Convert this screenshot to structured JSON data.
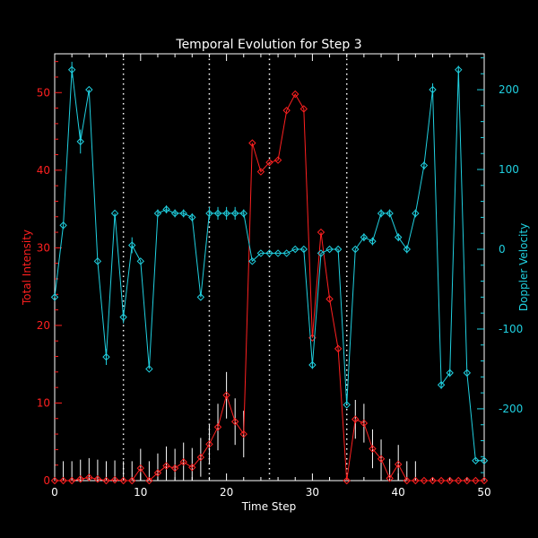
{
  "chart_data": {
    "type": "line",
    "title": "Temporal Evolution for Step 3",
    "xlabel": "Time Step",
    "ylabel_left": "Total Intensity",
    "ylabel_right": "Doppler Velocity",
    "xlim": [
      0,
      50
    ],
    "ylim_left": [
      0,
      55
    ],
    "ylim_right": [
      -290,
      245
    ],
    "x_ticks": [
      0,
      10,
      20,
      30,
      40,
      50
    ],
    "y_left_ticks": [
      0,
      10,
      20,
      30,
      40,
      50
    ],
    "y_right_ticks": [
      -200,
      -100,
      0,
      100,
      200
    ],
    "vertical_markers": [
      8,
      18,
      25,
      34
    ],
    "colors": {
      "background": "#000000",
      "axes": "#ffffff",
      "intensity": "#ff2020",
      "velocity": "#20d0e0",
      "markers": "#ffffff"
    },
    "series": [
      {
        "axis": "left",
        "x": [
          0,
          1,
          2,
          3,
          4,
          5,
          6,
          7,
          8,
          9,
          10,
          11,
          12,
          13,
          14,
          15,
          16,
          17,
          18,
          19,
          20,
          21,
          22,
          23,
          24,
          25,
          26,
          27,
          28,
          29,
          30,
          31,
          32,
          33,
          34,
          35,
          36,
          37,
          38,
          39,
          40,
          41,
          42,
          43,
          44,
          45,
          46,
          47,
          48,
          49,
          50
        ],
        "y": [
          0,
          0,
          0,
          0.2,
          0.4,
          0.2,
          0,
          0.1,
          0,
          0,
          1.6,
          0,
          1,
          1.9,
          1.6,
          2.4,
          1.7,
          3,
          4.7,
          6.9,
          11,
          7.6,
          6,
          43.5,
          39.8,
          41,
          41.3,
          47.7,
          49.8,
          47.9,
          18.4,
          32,
          23.4,
          17,
          0,
          7.9,
          7.4,
          4.1,
          2.8,
          0.3,
          2.1,
          0,
          0,
          0,
          0,
          0,
          0,
          0,
          0,
          0,
          0
        ],
        "err": [
          2.5,
          2.5,
          2.5,
          2.5,
          2.5,
          2.5,
          2.5,
          2.5,
          2.5,
          2.5,
          2.5,
          2.5,
          2.5,
          2.5,
          2.5,
          2.5,
          2.5,
          2.5,
          2.5,
          3,
          3,
          3,
          3,
          0,
          0,
          0,
          0,
          0,
          0,
          0,
          0,
          0,
          0,
          0,
          0,
          2.5,
          2.5,
          2.5,
          2.5,
          2.5,
          2.5,
          2.5,
          2.5,
          0,
          0,
          0,
          0,
          0,
          0,
          0,
          0
        ]
      },
      {
        "axis": "right",
        "x": [
          0,
          1,
          2,
          3,
          4,
          5,
          6,
          7,
          8,
          9,
          10,
          11,
          12,
          13,
          14,
          15,
          16,
          17,
          18,
          19,
          20,
          21,
          22,
          23,
          24,
          25,
          26,
          27,
          28,
          29,
          30,
          31,
          32,
          33,
          34,
          35,
          36,
          37,
          38,
          39,
          40,
          41,
          42,
          43,
          44,
          45,
          46,
          47,
          48,
          49,
          50
        ],
        "y": [
          -60,
          30,
          225,
          135,
          200,
          -15,
          -135,
          45,
          -85,
          5,
          -15,
          -150,
          45,
          50,
          45,
          45,
          40,
          -60,
          45,
          45,
          45,
          45,
          45,
          -15,
          -5,
          -5,
          -5,
          -5,
          0,
          0,
          -145,
          -5,
          0,
          0,
          -195,
          0,
          15,
          10,
          45,
          45,
          15,
          0,
          45,
          105,
          200,
          -170,
          -155,
          225,
          -155,
          -265,
          -265
        ],
        "err": [
          0,
          0,
          10,
          15,
          0,
          0,
          10,
          0,
          8,
          10,
          0,
          0,
          5,
          5,
          5,
          5,
          5,
          0,
          8,
          8,
          8,
          8,
          5,
          0,
          0,
          0,
          0,
          0,
          0,
          0,
          5,
          0,
          0,
          0,
          0,
          0,
          5,
          5,
          5,
          5,
          5,
          5,
          5,
          5,
          8,
          5,
          5,
          5,
          0,
          0,
          0
        ]
      }
    ]
  }
}
